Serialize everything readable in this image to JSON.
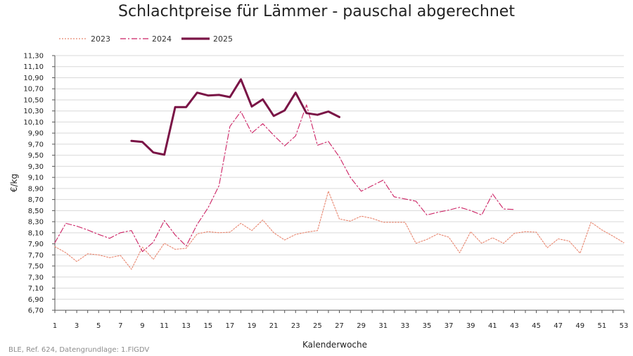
{
  "chart_data": {
    "type": "line",
    "title": "Schlachtpreise für Lämmer - pauschal abgerechnet",
    "xlabel": "Kalenderwoche",
    "ylabel": "€/kg",
    "xlim": [
      1,
      53
    ],
    "ylim": [
      6.7,
      11.3
    ],
    "x_ticks": [
      1,
      3,
      5,
      7,
      9,
      11,
      13,
      15,
      17,
      19,
      21,
      23,
      25,
      27,
      29,
      31,
      33,
      35,
      37,
      39,
      41,
      43,
      45,
      47,
      49,
      51,
      53
    ],
    "y_ticks": [
      "6,70",
      "6,90",
      "7,10",
      "7,30",
      "7,50",
      "7,70",
      "7,90",
      "8,10",
      "8,30",
      "8,50",
      "8,70",
      "8,90",
      "9,10",
      "9,30",
      "9,50",
      "9,70",
      "9,90",
      "10,10",
      "10,30",
      "10,50",
      "10,70",
      "10,90",
      "11,10",
      "11,30"
    ],
    "grid": "horizontal",
    "legend_position": "top-left",
    "series": [
      {
        "name": "2023",
        "color": "#e8866f",
        "style": "dotted",
        "x": [
          1,
          2,
          3,
          4,
          5,
          6,
          7,
          8,
          9,
          10,
          11,
          12,
          13,
          14,
          15,
          16,
          17,
          18,
          19,
          20,
          21,
          22,
          23,
          24,
          25,
          26,
          27,
          28,
          29,
          30,
          31,
          32,
          33,
          34,
          35,
          36,
          37,
          38,
          39,
          40,
          41,
          42,
          43,
          44,
          45,
          46,
          47,
          48,
          49,
          50,
          51,
          52,
          53
        ],
        "y": [
          7.85,
          7.74,
          7.58,
          7.72,
          7.7,
          7.65,
          7.69,
          7.44,
          7.84,
          7.62,
          7.91,
          7.8,
          7.82,
          8.08,
          8.12,
          8.1,
          8.11,
          8.27,
          8.14,
          8.33,
          8.1,
          7.97,
          8.07,
          8.11,
          8.14,
          8.85,
          8.35,
          8.31,
          8.4,
          8.36,
          8.29,
          8.29,
          8.29,
          7.91,
          7.98,
          8.08,
          8.02,
          7.74,
          8.12,
          7.91,
          8.01,
          7.91,
          8.09,
          8.12,
          8.11,
          7.83,
          7.99,
          7.95,
          7.73,
          8.29,
          8.15,
          8.04,
          7.92
        ]
      },
      {
        "name": "2024",
        "color": "#cc2264",
        "style": "dashdot",
        "x": [
          1,
          2,
          3,
          4,
          5,
          6,
          7,
          8,
          9,
          10,
          11,
          12,
          13,
          14,
          15,
          16,
          17,
          18,
          19,
          20,
          21,
          22,
          23,
          24,
          25,
          26,
          27,
          28,
          29,
          30,
          31,
          32,
          33,
          34,
          35,
          36,
          37,
          38,
          39,
          40,
          41,
          42,
          43
        ],
        "y": [
          7.92,
          8.27,
          8.22,
          8.15,
          8.07,
          8.0,
          8.1,
          8.14,
          7.76,
          7.93,
          8.32,
          8.06,
          7.86,
          8.25,
          8.55,
          8.95,
          10.02,
          10.29,
          9.9,
          10.07,
          9.86,
          9.67,
          9.85,
          10.41,
          9.68,
          9.75,
          9.47,
          9.1,
          8.85,
          8.95,
          9.05,
          8.75,
          8.71,
          8.67,
          8.42,
          8.47,
          8.51,
          8.56,
          8.5,
          8.42,
          8.8,
          8.53,
          8.52
        ]
      },
      {
        "name": "2025",
        "color": "#7a1446",
        "style": "solid",
        "x": [
          8,
          9,
          10,
          11,
          12,
          13,
          14,
          15,
          16,
          17,
          18,
          19,
          20,
          21,
          22,
          23,
          24,
          25,
          26,
          27
        ],
        "y": [
          9.76,
          9.74,
          9.55,
          9.51,
          10.37,
          10.37,
          10.63,
          10.58,
          10.59,
          10.55,
          10.87,
          10.38,
          10.51,
          10.21,
          10.31,
          10.63,
          10.26,
          10.23,
          10.29,
          10.19
        ]
      }
    ]
  },
  "footer": "BLE, Ref. 624, Datengrundlage: 1.FlGDV"
}
